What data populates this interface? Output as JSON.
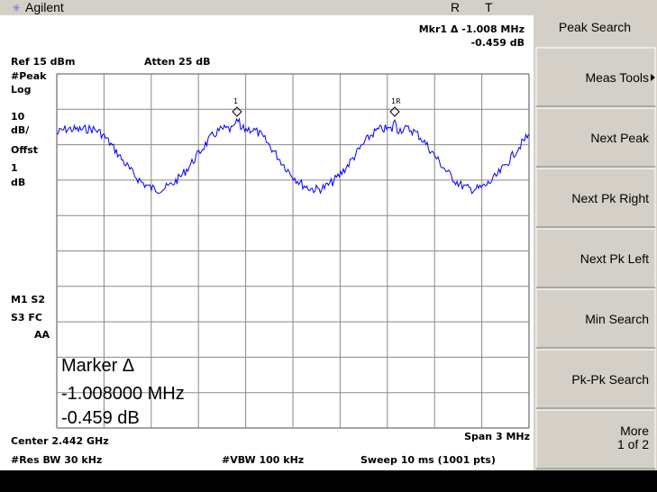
{
  "header": {
    "brand": "Agilent",
    "status_r": "R",
    "status_t": "T"
  },
  "marker_readout": {
    "label": "Mkr1 Δ -1.008 MHz",
    "amplitude": "-0.459 dB"
  },
  "settings": {
    "ref": "Ref 15 dBm",
    "atten": "Atten 25 dB"
  },
  "left_annotations": [
    "#Peak",
    "Log",
    "10",
    "dB/",
    "Offst",
    "1",
    "dB"
  ],
  "status_annotations": [
    "M1 S2",
    "S3 FC",
    "AA"
  ],
  "markers": [
    {
      "label": "1"
    },
    {
      "label": "1R"
    }
  ],
  "active_function": {
    "title": "Marker Δ",
    "frequency": "-1.008000 MHz",
    "amplitude": "-0.459 dB"
  },
  "footer": {
    "center": "Center 2.442 GHz",
    "span": "Span 3 MHz",
    "rbw": "#Res BW 30 kHz",
    "vbw": "#VBW 100 kHz",
    "sweep": "Sweep 10 ms (1001 pts)"
  },
  "menu": {
    "title": "Peak Search",
    "keys": [
      {
        "label": "Meas Tools"
      },
      {
        "label": "Next Peak"
      },
      {
        "label": "Next Pk Right"
      },
      {
        "label": "Next Pk Left"
      },
      {
        "label": "Min Search"
      },
      {
        "label": "Pk-Pk Search"
      },
      {
        "label": "More",
        "sub": "1 of 2"
      }
    ]
  }
}
